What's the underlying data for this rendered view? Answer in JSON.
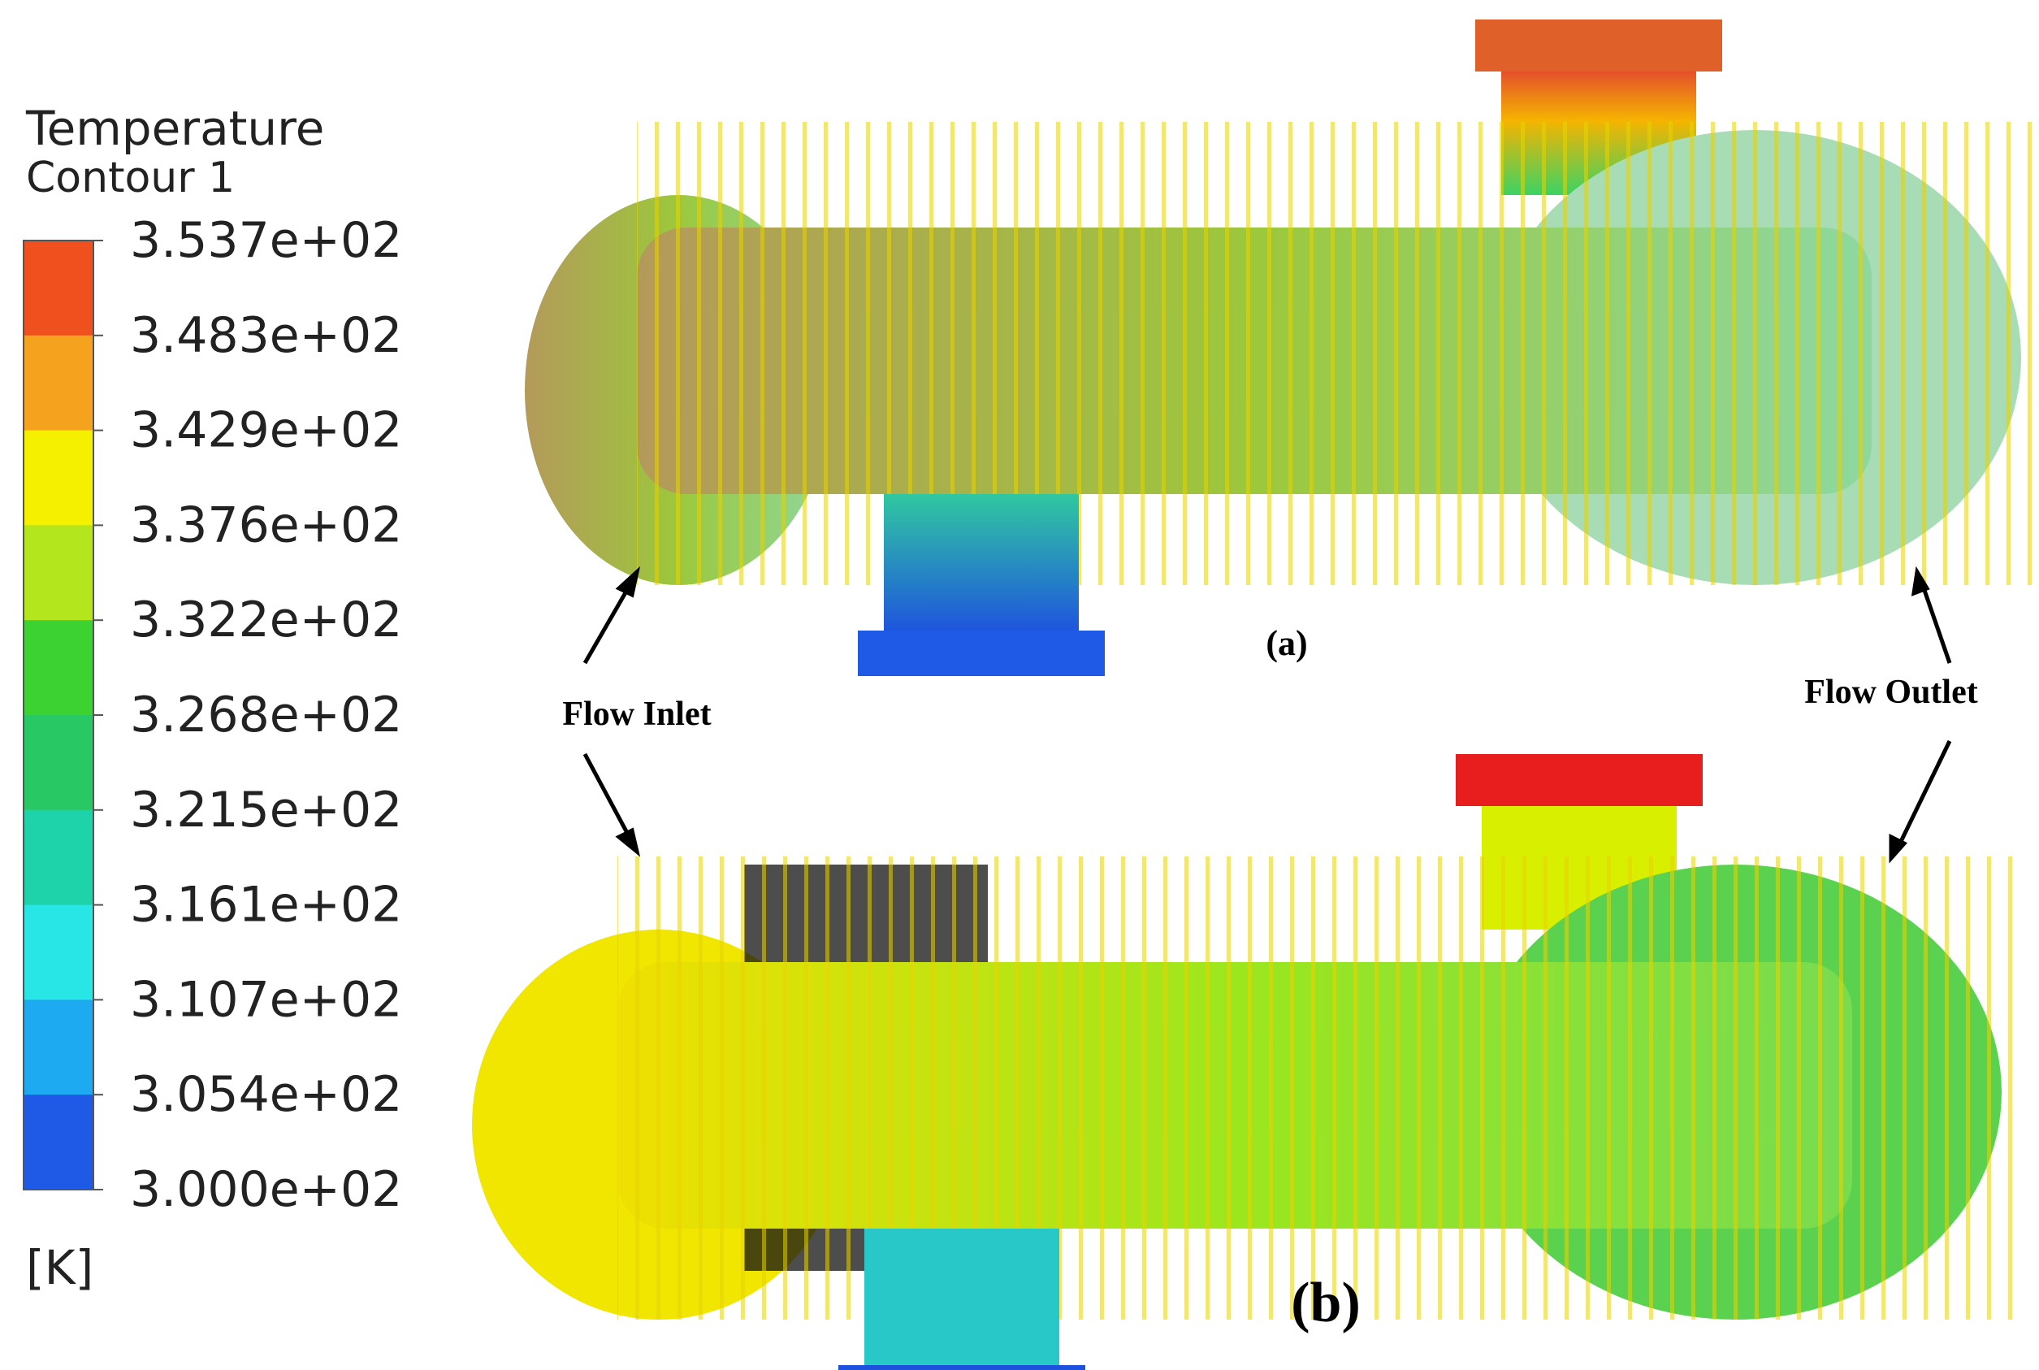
{
  "legend": {
    "title": "Temperature",
    "subtitle": "Contour 1",
    "unit": "[K]",
    "ticks": [
      "3.537e+02",
      "3.483e+02",
      "3.429e+02",
      "3.376e+02",
      "3.322e+02",
      "3.268e+02",
      "3.215e+02",
      "3.161e+02",
      "3.107e+02",
      "3.054e+02",
      "3.000e+02"
    ],
    "colors": [
      "#f0501e",
      "#f5a21e",
      "#f5f000",
      "#b4e61e",
      "#3cd232",
      "#28c864",
      "#1ed2aa",
      "#28e6e6",
      "#1eaaf0",
      "#1e5ae6"
    ]
  },
  "panels": [
    {
      "label": "(a)"
    },
    {
      "label": "(b)"
    }
  ],
  "annotations": {
    "inlet": "Flow Inlet",
    "outlet": "Flow Outlet"
  }
}
